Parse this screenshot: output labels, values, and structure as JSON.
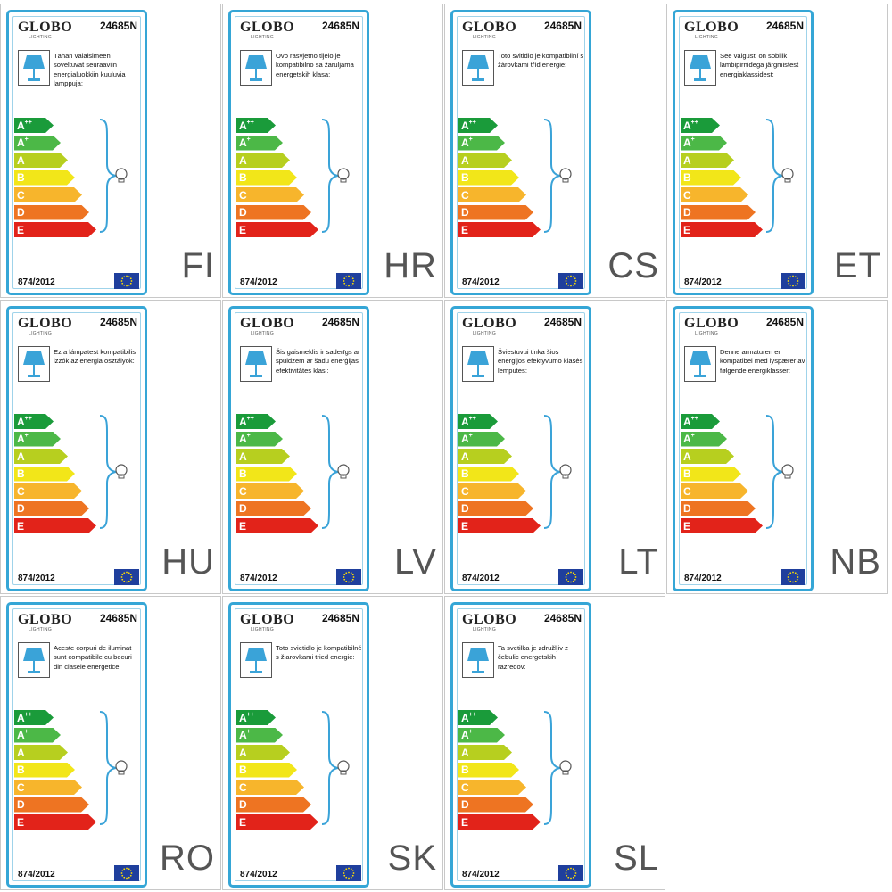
{
  "brand": {
    "name": "GLOBO",
    "sub": "LIGHTING"
  },
  "model_number": "24685N",
  "regulation": "874/2012",
  "energy_classes": [
    {
      "letter": "A",
      "sup": "++",
      "color": "#1a9b3a",
      "width": 44
    },
    {
      "letter": "A",
      "sup": "+",
      "color": "#4cb847",
      "width": 52
    },
    {
      "letter": "A",
      "sup": "",
      "color": "#b7cf1f",
      "width": 60
    },
    {
      "letter": "B",
      "sup": "",
      "color": "#f2e619",
      "width": 68
    },
    {
      "letter": "C",
      "sup": "",
      "color": "#f7b52c",
      "width": 76
    },
    {
      "letter": "D",
      "sup": "",
      "color": "#ee7422",
      "width": 84
    },
    {
      "letter": "E",
      "sup": "",
      "color": "#e2231a",
      "width": 92
    }
  ],
  "colors": {
    "frame": "#35a6d6",
    "lamp": "#3aa3d8",
    "eu_flag": "#1f3f9d",
    "eu_stars": "#ffde00"
  },
  "icons": {
    "lamp": "table-lamp-icon",
    "bulb": "light-bulb-icon",
    "flag": "eu-flag-icon"
  },
  "labels": [
    {
      "lang": "FI",
      "text": "Tähän valaisimeen soveltuvat seuraaviin energialuokkiin kuuluvia lamppuja:"
    },
    {
      "lang": "HR",
      "text": "Ovo rasvjetno tijelo je kompatibilno sa žaruljama energetskih klasa:"
    },
    {
      "lang": "CS",
      "text": "Toto svitidlo je kompatibilní s žárovkami tříd energie:"
    },
    {
      "lang": "ET",
      "text": "See valgusti on sobilik lambipirnidega järgmistest energiaklassidest:"
    },
    {
      "lang": "HU",
      "text": "Ez a lámpatest kompatibilis izzók az energia osztályok:"
    },
    {
      "lang": "LV",
      "text": "Šis gaismeklis ir saderīgs ar spuldzēm ar šādu enerģijas efektivitātes klasi:"
    },
    {
      "lang": "LT",
      "text": "Šviestuvui tinka šios energijos efektyvumo klasės lemputės:"
    },
    {
      "lang": "NB",
      "text": "Denne armaturen er kompatibel med lyspærer av følgende energiklasser:"
    },
    {
      "lang": "RO",
      "text": "Aceste corpuri de iluminat sunt compatibile cu becuri din clasele energetice:"
    },
    {
      "lang": "SK",
      "text": "Toto svietidlo je kompatibilné s žiarovkami tried energie:"
    },
    {
      "lang": "SL",
      "text": "Ta svetilka je združljiv z čebulic energetskih razredov:"
    }
  ]
}
